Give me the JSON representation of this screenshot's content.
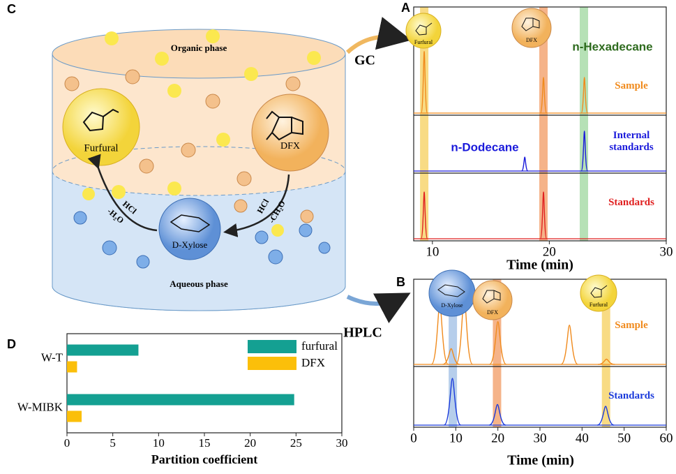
{
  "chart_data": [
    {
      "type": "chromatogram",
      "panel": "A",
      "method": "GC",
      "xlabel": "Time (min)",
      "xlim": [
        8.4,
        30
      ],
      "xticks": [
        10,
        20,
        30
      ],
      "bands": [
        {
          "x": 9.3,
          "color": "#f5c842"
        },
        {
          "x": 19.5,
          "color": "#f08a4a"
        },
        {
          "x": 22.96,
          "color": "#8fd18f"
        }
      ],
      "traces": [
        {
          "name": "Sample",
          "color": "#f08a1c",
          "peaks": [
            {
              "x": 9.3,
              "height": 0.57
            },
            {
              "x": 19.5,
              "height": 0.33
            },
            {
              "x": 23,
              "height": 0.33
            }
          ]
        },
        {
          "name": "Internal standards",
          "color": "#1a1adb",
          "peaks": [
            {
              "x": 17.9,
              "height": 0.24
            },
            {
              "x": 23,
              "height": 0.69
            }
          ]
        },
        {
          "name": "Standards",
          "color": "#e02020",
          "peaks": [
            {
              "x": 9.3,
              "height": 0.69
            },
            {
              "x": 19.5,
              "height": 0.69
            }
          ]
        }
      ],
      "annotations": [
        {
          "text": "n-Hexadecane",
          "color": "#2e6b1e"
        },
        {
          "text": "n-Dodecane",
          "color": "#1a1adb"
        }
      ]
    },
    {
      "type": "chromatogram",
      "panel": "B",
      "method": "HPLC",
      "xlabel": "Time (min)",
      "xlim": [
        0,
        60
      ],
      "xticks": [
        0,
        10,
        20,
        30,
        40,
        50,
        60
      ],
      "bands": [
        {
          "x": 9.3,
          "color": "#8fb4e0"
        },
        {
          "x": 19.8,
          "color": "#f08a4a"
        },
        {
          "x": 45.7,
          "color": "#f5c842"
        }
      ],
      "traces": [
        {
          "name": "Sample",
          "color": "#f08a1c",
          "peaks": [
            {
              "x": 6.2,
              "height": 0.7
            },
            {
              "x": 8.9,
              "height": 0.18
            },
            {
              "x": 12,
              "height": 0.79
            },
            {
              "x": 20,
              "height": 0.49
            },
            {
              "x": 37,
              "height": 0.45
            },
            {
              "x": 45.8,
              "height": 0.06
            }
          ]
        },
        {
          "name": "Standards",
          "color": "#1a3adb",
          "peaks": [
            {
              "x": 9.2,
              "height": 0.77
            },
            {
              "x": 19.9,
              "height": 0.34
            },
            {
              "x": 45.6,
              "height": 0.31
            }
          ]
        }
      ]
    },
    {
      "type": "hbar",
      "panel": "D",
      "xlabel": "Partition coefficient",
      "xlim": [
        0,
        30
      ],
      "xticks": [
        0,
        5,
        10,
        15,
        20,
        25,
        30
      ],
      "categories": [
        "W-T",
        "W-MIBK"
      ],
      "series": [
        {
          "name": "furfural",
          "color": "#14a092",
          "values": [
            7.8,
            24.8
          ]
        },
        {
          "name": "DFX",
          "color": "#fbbf0a",
          "values": [
            1.1,
            1.6
          ]
        }
      ]
    }
  ],
  "diagram": {
    "panel": "C",
    "organic": "Organic phase",
    "aqueous": "Aqueous phase",
    "furfural": "Furfural",
    "dfx": "DFX",
    "xylose": "D-Xylose",
    "left_reagent": "HCl",
    "left_loss": "-H₂O",
    "right_reagent": "HCl",
    "right_loss": "-CH₂O",
    "insets": {
      "a_furfural": "Furfural",
      "a_dfx": "DFX",
      "b_xylose": "D-Xylose",
      "b_dfx": "DFX",
      "b_furfural": "Furfural"
    }
  }
}
